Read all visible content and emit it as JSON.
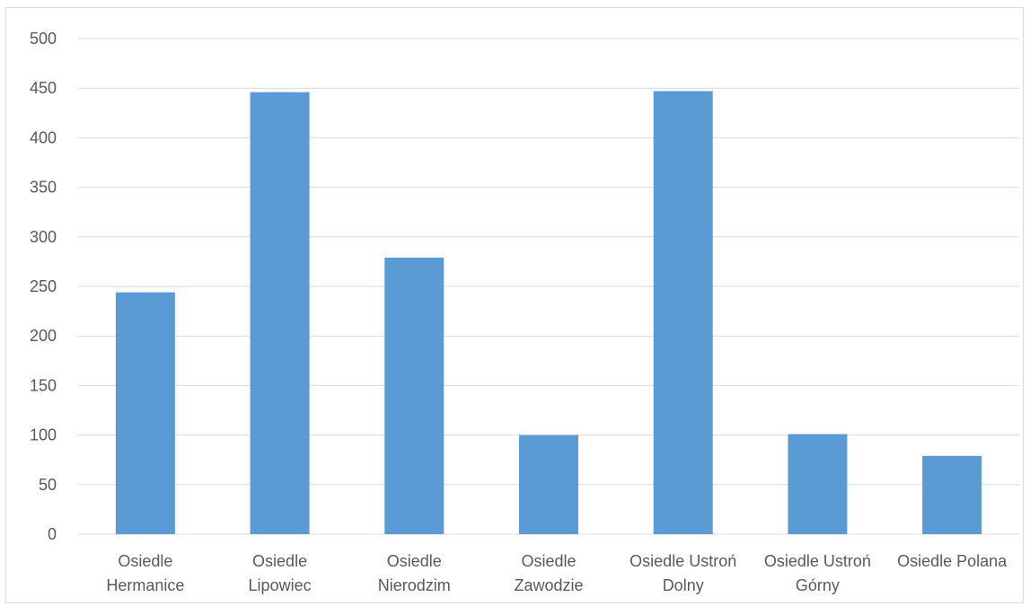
{
  "chart_data": {
    "type": "bar",
    "categories": [
      [
        "Osiedle",
        "Hermanice"
      ],
      [
        "Osiedle",
        "Lipowiec"
      ],
      [
        "Osiedle",
        "Nierodzim"
      ],
      [
        "Osiedle",
        "Zawodzie"
      ],
      [
        "Osiedle Ustroń",
        "Dolny"
      ],
      [
        "Osiedle Ustroń",
        "Górny"
      ],
      [
        "Osiedle Polana"
      ]
    ],
    "values": [
      244,
      446,
      279,
      100,
      447,
      101,
      79
    ],
    "ylim": [
      0,
      500
    ],
    "yticks": [
      0,
      50,
      100,
      150,
      200,
      250,
      300,
      350,
      400,
      450,
      500
    ],
    "grid": true,
    "legend": "none",
    "bar_color": "#5b9bd5"
  }
}
